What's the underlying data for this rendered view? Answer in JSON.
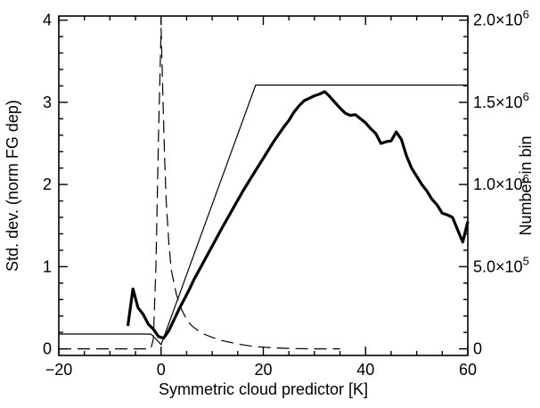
{
  "chart_data": {
    "type": "line",
    "title": "",
    "xlabel": "Symmetric cloud predictor [K]",
    "ylabel_left": "Std. dev. (norm FG dep)",
    "ylabel_right": "Number in bin",
    "xlim": [
      -20,
      60
    ],
    "ylim_left": [
      -0.08,
      4.05
    ],
    "ylim_right": [
      -40000,
      2025000
    ],
    "x_ticks": [
      -20,
      0,
      20,
      40,
      60
    ],
    "x_tick_labels": [
      "−20",
      "0",
      "20",
      "40",
      "60"
    ],
    "y_left_ticks": [
      0,
      1,
      2,
      3,
      4
    ],
    "y_left_tick_labels": [
      "0",
      "1",
      "2",
      "3",
      "4"
    ],
    "y_right_ticks": [
      0,
      500000,
      1000000,
      1500000,
      2000000
    ],
    "y_right_tick_labels": [
      {
        "mantissa": "0",
        "exp": ""
      },
      {
        "mantissa": "5.0×10",
        "exp": "5"
      },
      {
        "mantissa": "1.0×10",
        "exp": "6"
      },
      {
        "mantissa": "1.5×10",
        "exp": "6"
      },
      {
        "mantissa": "2.0×10",
        "exp": "6"
      }
    ],
    "grid": false,
    "series": [
      {
        "style": "thick-solid",
        "axis": "left",
        "x": [
          -6.5,
          -5.5,
          -4.5,
          -3.5,
          -2.5,
          -1.5,
          -0.5,
          0.5,
          1.5,
          2.5,
          3.5,
          4.5,
          5.5,
          6.5,
          8,
          10,
          12,
          14,
          16,
          18,
          20,
          22,
          24,
          25,
          26,
          27,
          28,
          29,
          30,
          31,
          32,
          33,
          34,
          35,
          36,
          37,
          38,
          39,
          40,
          41,
          42,
          43,
          44,
          45,
          46,
          47,
          48,
          49,
          50,
          51,
          52,
          53,
          54,
          55,
          56,
          57,
          58,
          59,
          60
        ],
        "y": [
          0.28,
          0.73,
          0.5,
          0.42,
          0.3,
          0.24,
          0.15,
          0.13,
          0.22,
          0.35,
          0.48,
          0.6,
          0.72,
          0.85,
          1.02,
          1.25,
          1.48,
          1.7,
          1.92,
          2.12,
          2.32,
          2.52,
          2.7,
          2.78,
          2.88,
          2.96,
          3.02,
          3.05,
          3.08,
          3.1,
          3.13,
          3.07,
          3.0,
          2.93,
          2.87,
          2.84,
          2.85,
          2.8,
          2.75,
          2.68,
          2.62,
          2.5,
          2.52,
          2.53,
          2.64,
          2.55,
          2.35,
          2.2,
          2.1,
          2.0,
          1.92,
          1.82,
          1.75,
          1.65,
          1.63,
          1.6,
          1.45,
          1.3,
          1.55
        ]
      },
      {
        "style": "thin-solid",
        "axis": "left",
        "x": [
          -20,
          -2,
          -1,
          0,
          18.5,
          60
        ],
        "y": [
          0.18,
          0.18,
          0.12,
          0.05,
          3.21,
          3.21
        ]
      },
      {
        "style": "dashed",
        "axis": "right",
        "x": [
          -20,
          -2,
          -1.5,
          -1,
          -0.5,
          0,
          0.3,
          0.7,
          1,
          1.5,
          2,
          3,
          4,
          5,
          6,
          8,
          10,
          12,
          15,
          18,
          22,
          26,
          30,
          35
        ],
        "y": [
          0,
          0,
          60000,
          500000,
          1300000,
          1950000,
          1600000,
          1150000,
          900000,
          650000,
          480000,
          330000,
          240000,
          180000,
          140000,
          95000,
          70000,
          50000,
          30000,
          15000,
          6000,
          2000,
          0,
          0
        ]
      }
    ]
  }
}
